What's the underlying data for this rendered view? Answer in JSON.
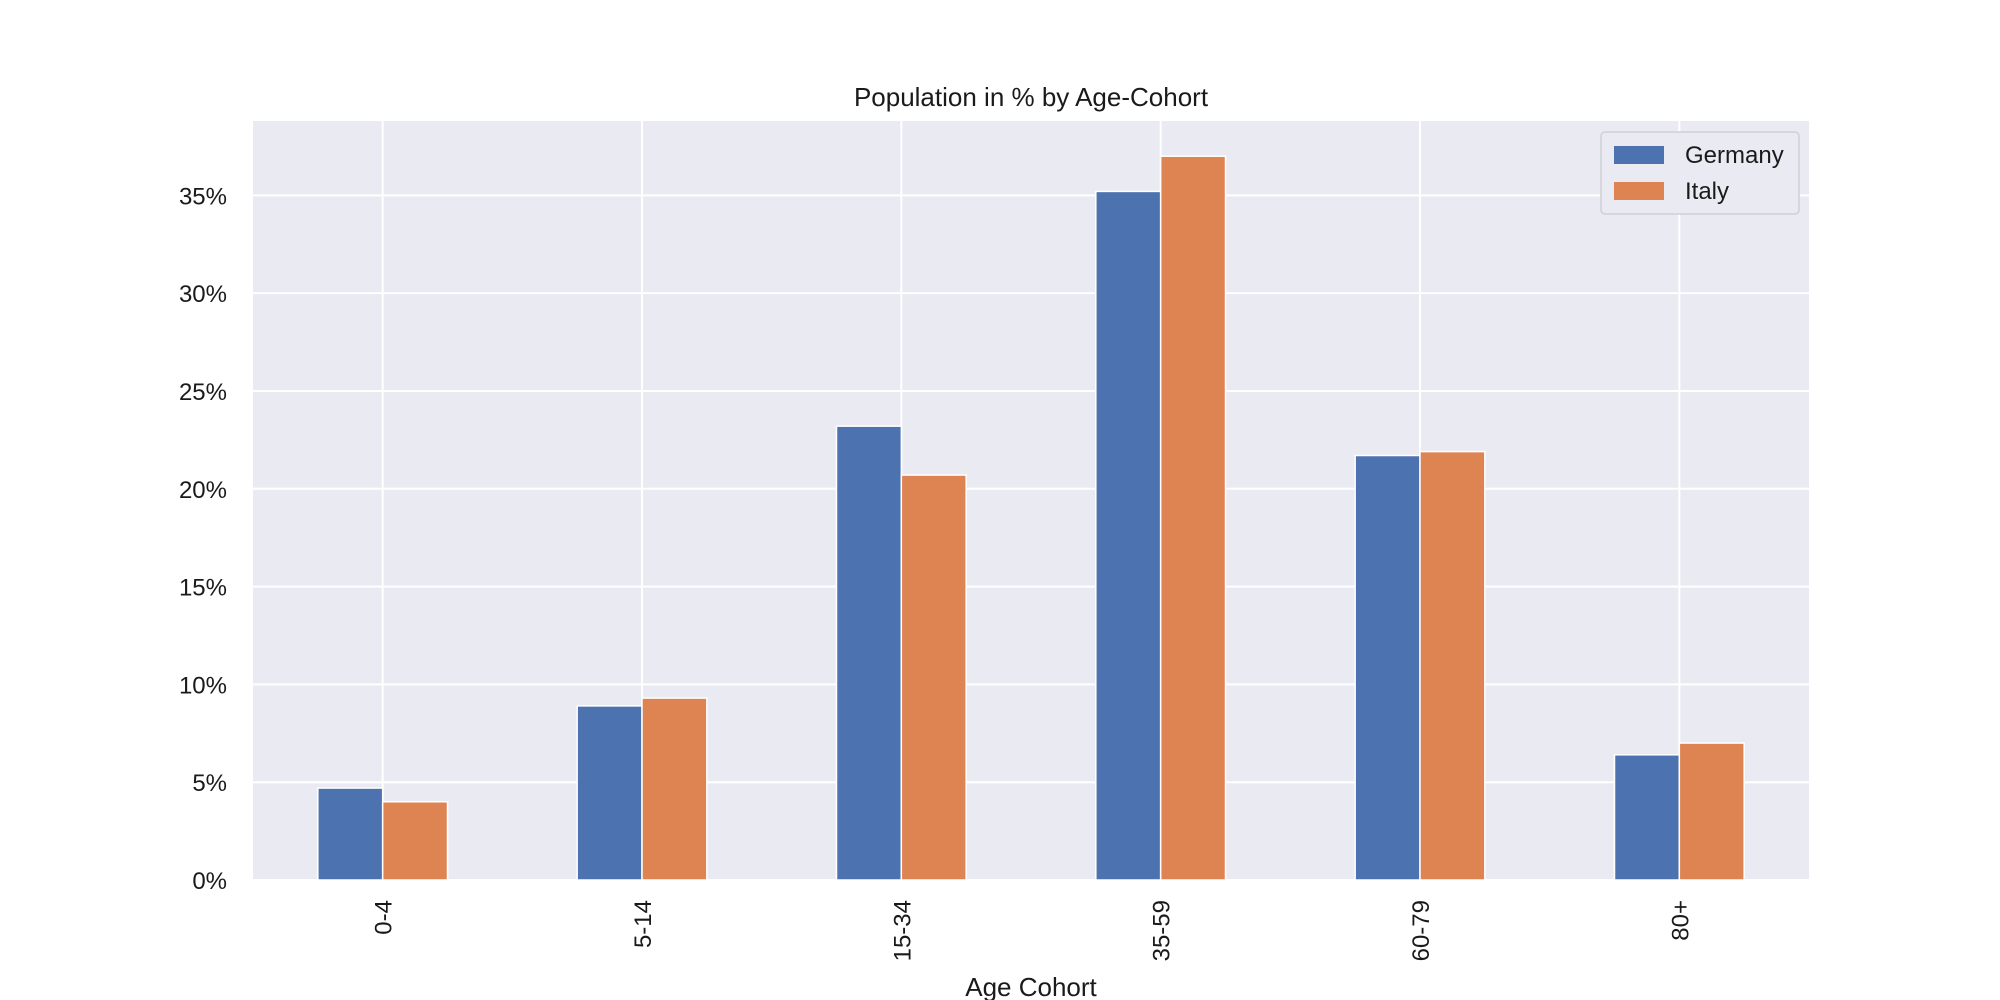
{
  "chart_data": {
    "type": "bar",
    "title": "Population in % by Age-Cohort",
    "xlabel": "Age Cohort",
    "ylabel": "",
    "categories": [
      "0-4",
      "5-14",
      "15-34",
      "35-59",
      "60-79",
      "80+"
    ],
    "series": [
      {
        "name": "Germany",
        "color": "#4c72b0",
        "values": [
          4.7,
          8.9,
          23.2,
          35.2,
          21.7,
          6.4
        ]
      },
      {
        "name": "Italy",
        "color": "#dd8452",
        "values": [
          4.0,
          9.3,
          20.7,
          37.0,
          21.9,
          7.0
        ]
      }
    ],
    "ylim": [
      0,
      38.8
    ],
    "yticks": [
      0,
      5,
      10,
      15,
      20,
      25,
      30,
      35
    ],
    "ytick_labels": [
      "0%",
      "5%",
      "10%",
      "15%",
      "20%",
      "25%",
      "30%",
      "35%"
    ],
    "grid": true,
    "legend_position": "top-right",
    "plot_background": "#eaeaf2",
    "grid_color": "#ffffff"
  }
}
